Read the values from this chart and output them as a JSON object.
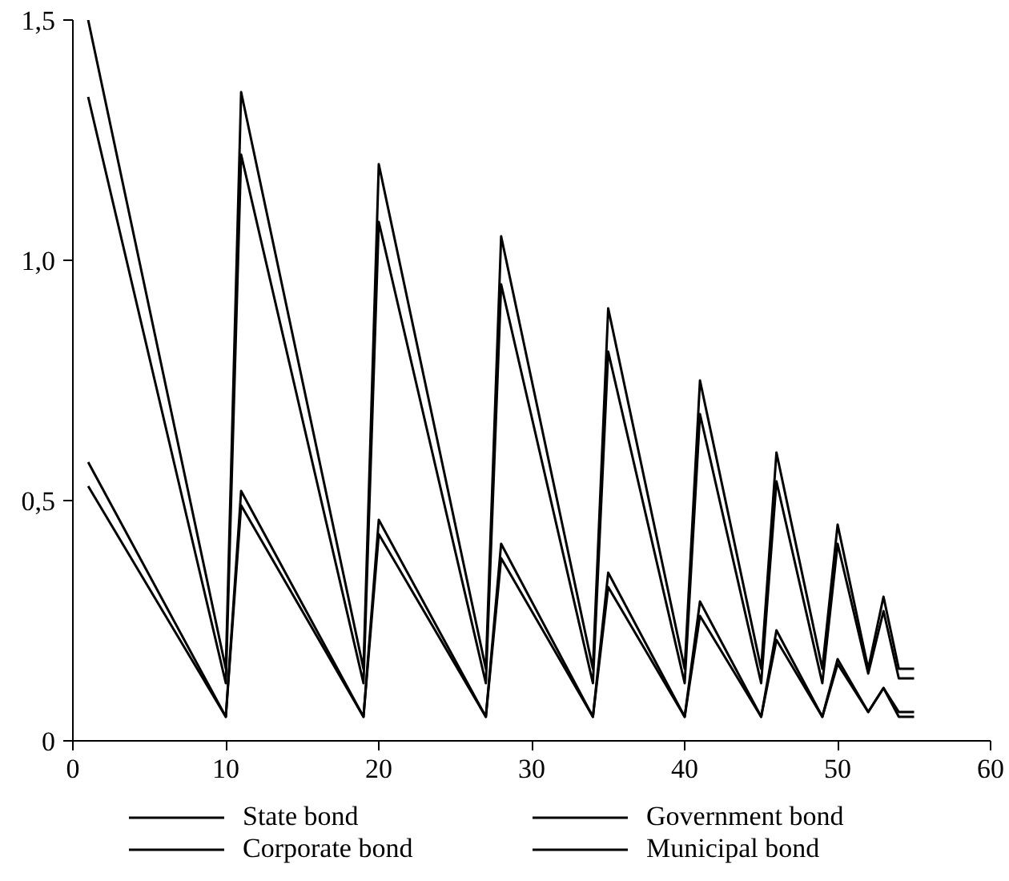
{
  "chart_data": {
    "type": "line",
    "x": [
      1,
      10,
      11,
      19,
      20,
      27,
      28,
      34,
      35,
      40,
      41,
      45,
      46,
      49,
      50,
      52,
      53,
      54,
      55
    ],
    "series": [
      {
        "name": "State bond",
        "color": "#000000",
        "values": [
          1.5,
          0.15,
          1.35,
          0.15,
          1.2,
          0.15,
          1.05,
          0.15,
          0.9,
          0.15,
          0.75,
          0.15,
          0.6,
          0.15,
          0.45,
          0.15,
          0.3,
          0.15,
          0.15
        ]
      },
      {
        "name": "Corporate bond",
        "color": "#000000",
        "values": [
          0.53,
          0.05,
          0.49,
          0.05,
          0.43,
          0.05,
          0.38,
          0.05,
          0.32,
          0.05,
          0.26,
          0.05,
          0.21,
          0.05,
          0.16,
          0.06,
          0.11,
          0.05,
          0.05
        ]
      },
      {
        "name": "Government bond",
        "color": "#000000",
        "values": [
          0.58,
          0.05,
          0.52,
          0.05,
          0.46,
          0.05,
          0.41,
          0.05,
          0.35,
          0.05,
          0.29,
          0.05,
          0.23,
          0.05,
          0.17,
          0.06,
          0.11,
          0.06,
          0.06
        ]
      },
      {
        "name": "Municipal bond",
        "color": "#000000",
        "values": [
          1.34,
          0.12,
          1.22,
          0.12,
          1.08,
          0.12,
          0.95,
          0.12,
          0.81,
          0.12,
          0.68,
          0.12,
          0.54,
          0.12,
          0.41,
          0.14,
          0.27,
          0.13,
          0.13
        ]
      }
    ],
    "xlim": [
      0,
      60
    ],
    "xticks": [
      0,
      10,
      20,
      30,
      40,
      50,
      60
    ],
    "ylim": [
      0,
      1.5
    ],
    "yticks": [
      {
        "value": 0,
        "label": "0"
      },
      {
        "value": 0.5,
        "label": "0,5"
      },
      {
        "value": 1.0,
        "label": "1,0"
      },
      {
        "value": 1.5,
        "label": "1,5"
      }
    ],
    "grid": false,
    "legend": "bottom",
    "marker": "none",
    "line_style": "solid"
  }
}
